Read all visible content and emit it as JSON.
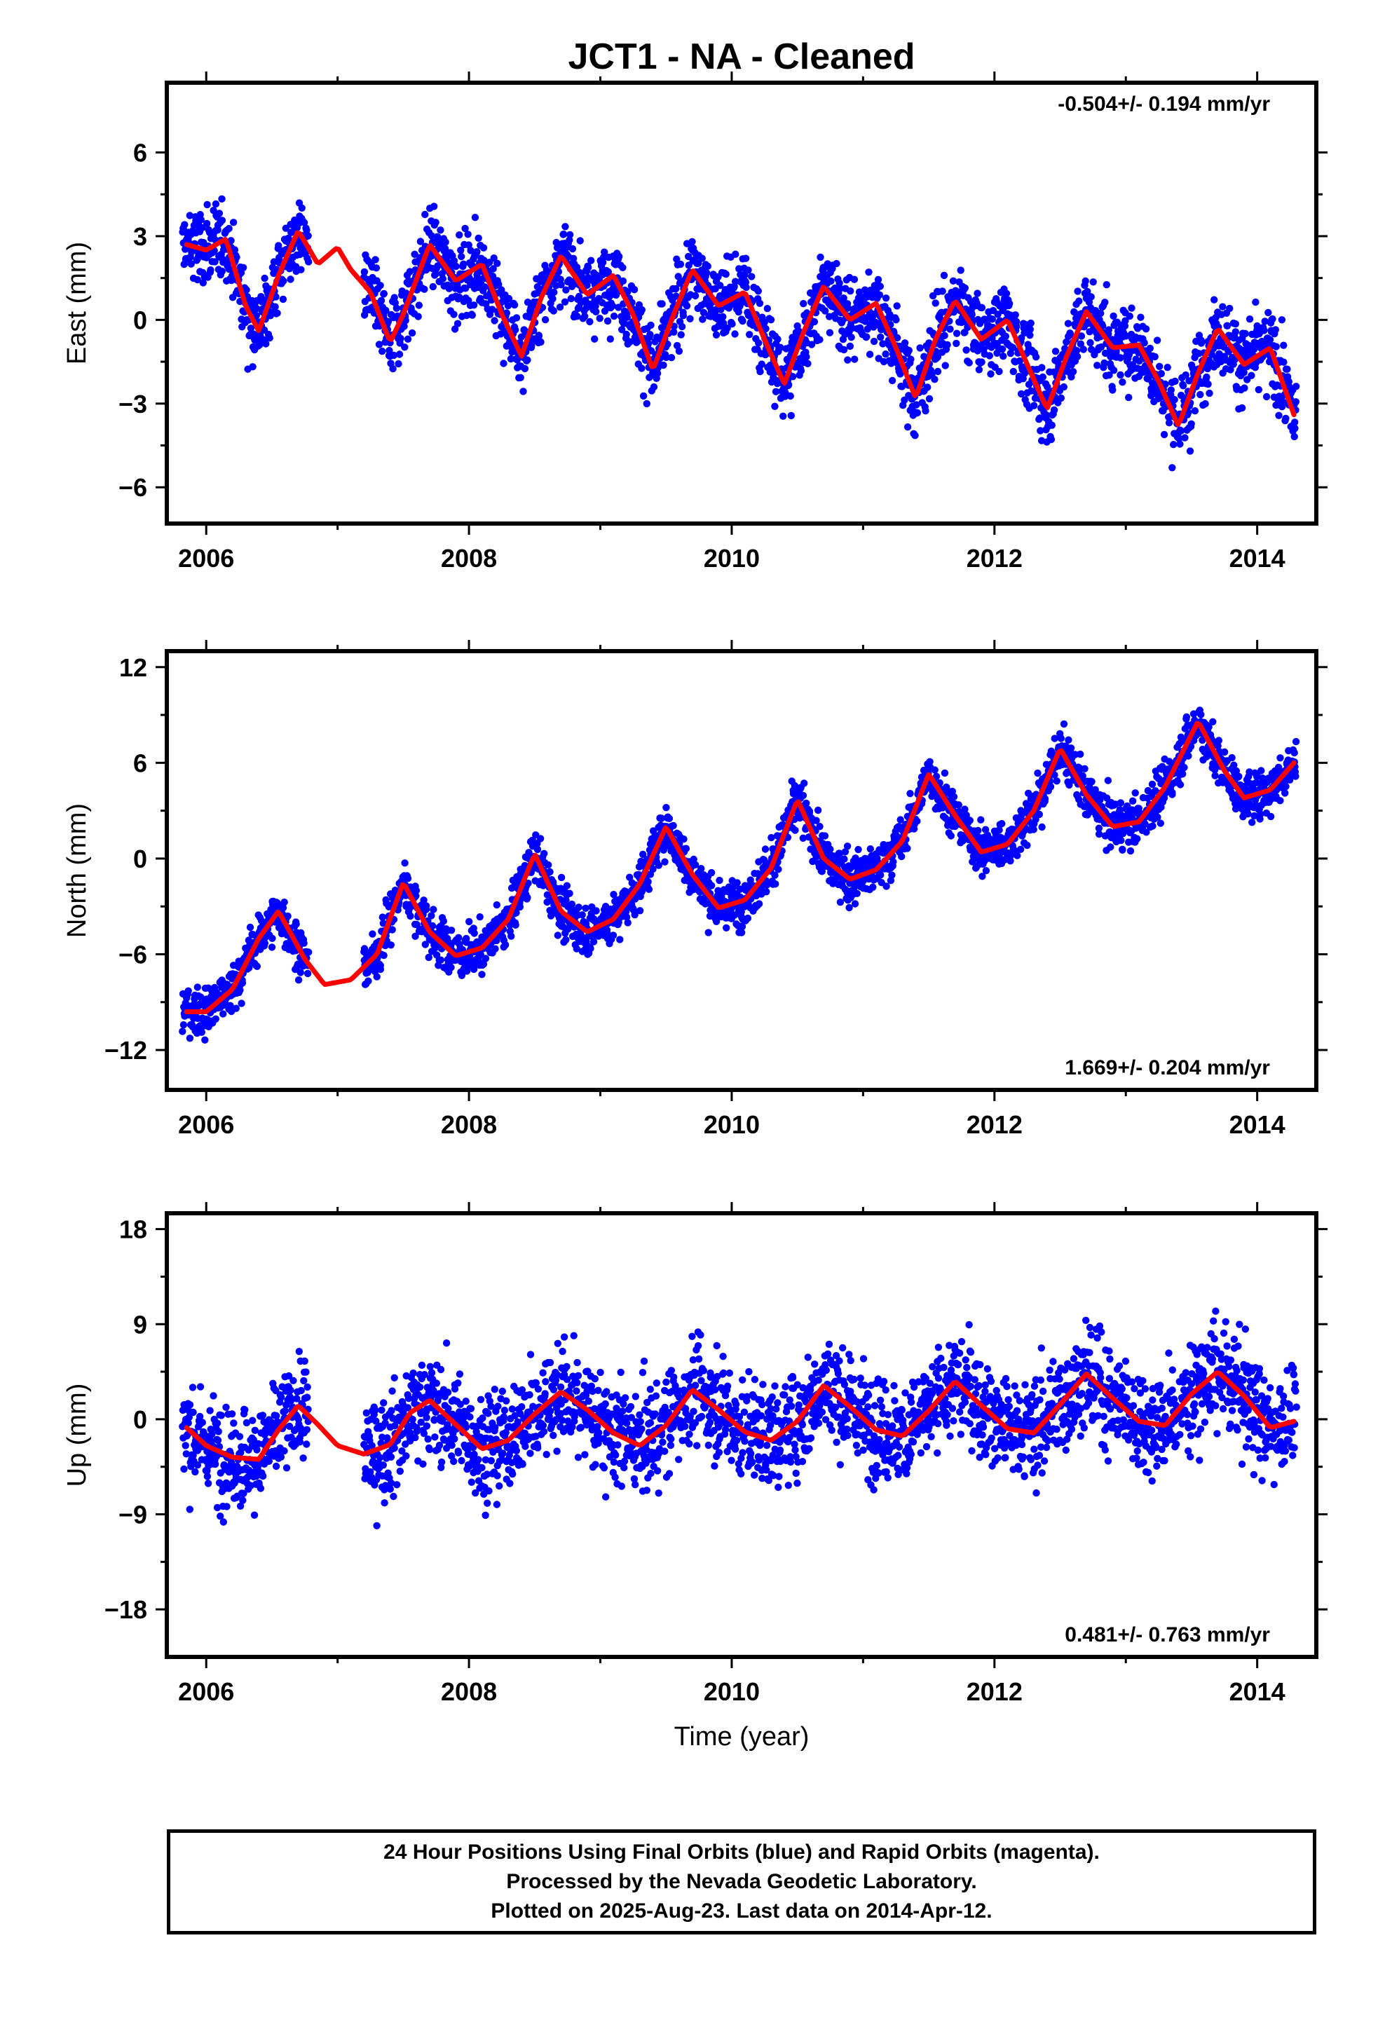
{
  "chart_data": {
    "type": "scatter",
    "title": "JCT1  - NA - Cleaned",
    "xlabel": "Time (year)",
    "xlim": [
      2005.7,
      2014.45
    ],
    "xticks": [
      2006,
      2008,
      2010,
      2012,
      2014
    ],
    "point_color": "#0000ff",
    "fit_color": "#ff0000",
    "panels": [
      {
        "id": "east",
        "ylabel": "East (mm)",
        "ylim": [
          -7.3,
          8.5
        ],
        "yticks": [
          -6,
          -3,
          0,
          3,
          6
        ],
        "ytick_labels": [
          "−6",
          "−3",
          "0",
          "3",
          "6"
        ],
        "rate_text": "-0.504+/- 0.194 mm/yr",
        "rate_position": "top-right",
        "series": [
          {
            "type": "line",
            "x": [
              2005.85,
              2006.0,
              2006.15,
              2006.3,
              2006.4,
              2006.55,
              2006.7,
              2006.85,
              2007.0,
              2007.1,
              2007.25,
              2007.4,
              2007.5,
              2007.7,
              2007.9,
              2008.1,
              2008.25,
              2008.4,
              2008.55,
              2008.7,
              2008.9,
              2009.1,
              2009.25,
              2009.4,
              2009.55,
              2009.7,
              2009.9,
              2010.1,
              2010.25,
              2010.4,
              2010.55,
              2010.7,
              2010.9,
              2011.1,
              2011.25,
              2011.4,
              2011.55,
              2011.7,
              2011.9,
              2012.1,
              2012.25,
              2012.4,
              2012.55,
              2012.7,
              2012.9,
              2013.1,
              2013.25,
              2013.4,
              2013.55,
              2013.7,
              2013.9,
              2014.1,
              2014.28
            ],
            "y": [
              2.7,
              2.5,
              2.9,
              0.5,
              -0.4,
              1.6,
              3.2,
              2.0,
              2.6,
              1.8,
              1.0,
              -0.8,
              0.2,
              2.7,
              1.4,
              2.0,
              0.2,
              -1.3,
              0.8,
              2.3,
              0.9,
              1.6,
              0.2,
              -1.8,
              0.1,
              1.8,
              0.5,
              1.0,
              -0.7,
              -2.3,
              -0.4,
              1.2,
              0.0,
              0.6,
              -1.0,
              -2.8,
              -0.7,
              0.7,
              -0.7,
              0.0,
              -1.6,
              -3.2,
              -1.3,
              0.3,
              -1.0,
              -0.9,
              -2.2,
              -3.8,
              -1.9,
              -0.3,
              -1.6,
              -1.0,
              -3.4
            ]
          },
          {
            "type": "scatter_envelope",
            "segments": [
              [
                2005.82,
                2006.78
              ],
              [
                2007.2,
                2014.3
              ]
            ],
            "spread_mm": 1.3
          }
        ]
      },
      {
        "id": "north",
        "ylabel": "North (mm)",
        "ylim": [
          -14.5,
          13.0
        ],
        "yticks": [
          -12,
          -6,
          0,
          6,
          12
        ],
        "ytick_labels": [
          "−12",
          "−6",
          "0",
          "6",
          "12"
        ],
        "rate_text": "1.669+/- 0.204 mm/yr",
        "rate_position": "bottom-right",
        "series": [
          {
            "type": "line",
            "x": [
              2005.85,
              2006.0,
              2006.2,
              2006.4,
              2006.55,
              2006.75,
              2006.9,
              2007.1,
              2007.3,
              2007.5,
              2007.7,
              2007.9,
              2008.1,
              2008.3,
              2008.5,
              2008.7,
              2008.9,
              2009.1,
              2009.3,
              2009.5,
              2009.7,
              2009.9,
              2010.1,
              2010.3,
              2010.5,
              2010.7,
              2010.9,
              2011.1,
              2011.3,
              2011.5,
              2011.7,
              2011.9,
              2012.1,
              2012.3,
              2012.5,
              2012.7,
              2012.9,
              2013.1,
              2013.3,
              2013.55,
              2013.75,
              2013.9,
              2014.1,
              2014.28
            ],
            "y": [
              -9.6,
              -9.6,
              -8.2,
              -5.0,
              -3.3,
              -6.3,
              -7.9,
              -7.6,
              -6.0,
              -1.5,
              -4.6,
              -6.1,
              -5.6,
              -3.8,
              0.3,
              -3.3,
              -4.6,
              -3.8,
              -1.6,
              2.0,
              -1.0,
              -3.1,
              -2.6,
              -0.6,
              3.7,
              0.0,
              -1.3,
              -0.7,
              1.1,
              5.3,
              2.7,
              0.4,
              0.9,
              3.0,
              6.9,
              4.0,
              2.0,
              2.3,
              4.5,
              8.6,
              5.5,
              3.8,
              4.3,
              6.0
            ]
          },
          {
            "type": "scatter_envelope",
            "segments": [
              [
                2005.82,
                2006.78
              ],
              [
                2007.2,
                2014.3
              ]
            ],
            "spread_mm": 1.4
          }
        ]
      },
      {
        "id": "up",
        "ylabel": "Up (mm)",
        "ylim": [
          -22.5,
          19.5
        ],
        "yticks": [
          -18,
          -9,
          0,
          9,
          18
        ],
        "ytick_labels": [
          "−18",
          "−9",
          "0",
          "9",
          "18"
        ],
        "rate_text": "0.481+/- 0.763 mm/yr",
        "rate_position": "bottom-right",
        "series": [
          {
            "type": "line",
            "x": [
              2005.85,
              2006.0,
              2006.2,
              2006.4,
              2006.55,
              2006.7,
              2006.85,
              2007.0,
              2007.2,
              2007.4,
              2007.55,
              2007.7,
              2007.9,
              2008.1,
              2008.3,
              2008.5,
              2008.7,
              2008.9,
              2009.1,
              2009.3,
              2009.5,
              2009.7,
              2009.9,
              2010.1,
              2010.3,
              2010.5,
              2010.7,
              2010.9,
              2011.1,
              2011.3,
              2011.5,
              2011.7,
              2011.9,
              2012.1,
              2012.3,
              2012.5,
              2012.7,
              2012.9,
              2013.1,
              2013.3,
              2013.5,
              2013.7,
              2013.9,
              2014.1,
              2014.28
            ],
            "y": [
              -0.8,
              -2.5,
              -3.6,
              -3.8,
              -1.0,
              1.3,
              -0.5,
              -2.5,
              -3.3,
              -2.4,
              0.6,
              1.8,
              -0.5,
              -2.8,
              -2.0,
              0.5,
              2.6,
              0.9,
              -1.3,
              -2.5,
              -0.6,
              2.8,
              0.9,
              -1.2,
              -2.0,
              -0.2,
              3.2,
              1.2,
              -1.0,
              -1.6,
              0.8,
              3.6,
              1.3,
              -0.9,
              -1.3,
              1.4,
              4.3,
              2.0,
              -0.2,
              -0.6,
              2.4,
              4.5,
              2.2,
              -0.8,
              -0.2
            ]
          },
          {
            "type": "scatter_envelope",
            "segments": [
              [
                2005.82,
                2006.78
              ],
              [
                2007.2,
                2014.3
              ]
            ],
            "spread_mm": 4.5
          }
        ]
      }
    ]
  },
  "footer": {
    "line1": "24 Hour Positions Using Final Orbits (blue) and Rapid Orbits (magenta).",
    "line2": "Processed by the Nevada Geodetic Laboratory.",
    "line3": "Plotted on 2025-Aug-23. Last data on 2014-Apr-12."
  }
}
